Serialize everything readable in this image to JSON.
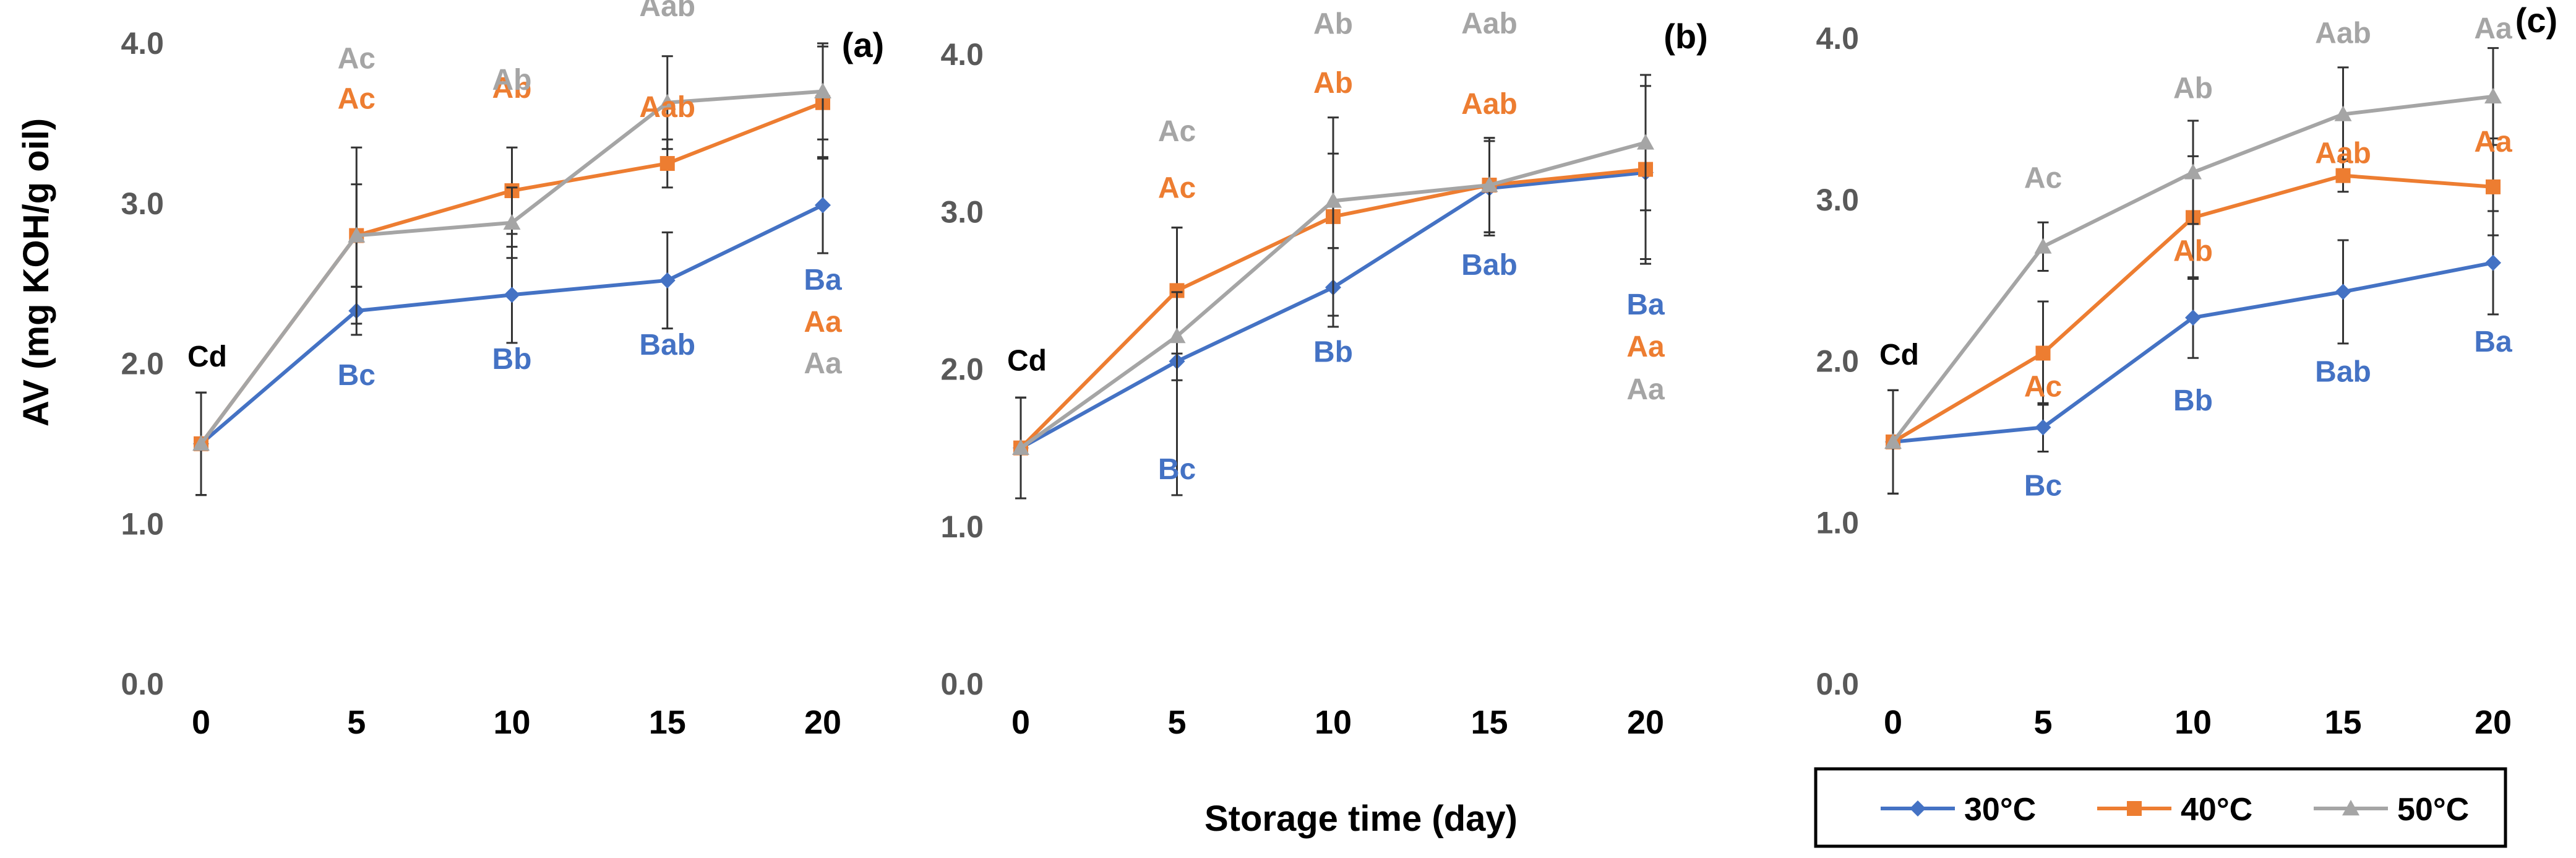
{
  "figure": {
    "ylabel": "AV (mg KOH/g oil)",
    "xlabel": "Storage time (day)"
  },
  "legend": {
    "items": [
      {
        "label": "30°C",
        "color": "#4472C4",
        "marker": "diamond"
      },
      {
        "label": "40°C",
        "color": "#ED7D31",
        "marker": "square"
      },
      {
        "label": "50°C",
        "color": "#A5A5A5",
        "marker": "triangle"
      }
    ]
  },
  "chart_data": [
    {
      "type": "line",
      "panel": "(a)",
      "x": [
        0,
        5,
        10,
        15,
        20
      ],
      "ylim": [
        0,
        4
      ],
      "yticks": [
        "0.0",
        "1.0",
        "2.0",
        "3.0",
        "4.0"
      ],
      "xticks": [
        "0",
        "5",
        "10",
        "15",
        "20"
      ],
      "series": [
        {
          "name": "30°C",
          "color": "#4472C4",
          "marker": "diamond",
          "values": [
            1.5,
            2.33,
            2.43,
            2.52,
            2.99
          ],
          "err": [
            0.32,
            0.15,
            0.3,
            0.3,
            0.3
          ],
          "labels": [
            "Cd",
            "Bc",
            "Bb",
            "Bab",
            "Ba"
          ]
        },
        {
          "name": "40°C",
          "color": "#ED7D31",
          "marker": "square",
          "values": [
            1.5,
            2.8,
            3.08,
            3.25,
            3.63
          ],
          "err": [
            0.32,
            0.55,
            0.27,
            0.15,
            0.35
          ],
          "labels": [
            "",
            "Ac",
            "Ab",
            "Aab",
            "Aa"
          ]
        },
        {
          "name": "50°C",
          "color": "#A5A5A5",
          "marker": "triangle",
          "values": [
            1.5,
            2.8,
            2.88,
            3.63,
            3.7
          ],
          "err": [
            0.32,
            0.32,
            0.22,
            0.29,
            0.3
          ],
          "labels": [
            "",
            "Ac",
            "Ab",
            "Aab",
            "Aa"
          ]
        }
      ]
    },
    {
      "type": "line",
      "panel": "(b)",
      "x": [
        0,
        5,
        10,
        15,
        20
      ],
      "ylim": [
        0,
        4
      ],
      "yticks": [
        "0.0",
        "1.0",
        "2.0",
        "3.0",
        "4.0"
      ],
      "xticks": [
        "0",
        "5",
        "10",
        "15",
        "20"
      ],
      "series": [
        {
          "name": "30°C",
          "color": "#4472C4",
          "marker": "diamond",
          "values": [
            1.5,
            2.05,
            2.52,
            3.15,
            3.25
          ],
          "err": [
            0.32,
            0.85,
            0.25,
            0.3,
            0.55
          ],
          "labels": [
            "Cd",
            "Bc",
            "Bb",
            "Bab",
            "Ba"
          ]
        },
        {
          "name": "40°C",
          "color": "#ED7D31",
          "marker": "square",
          "values": [
            1.5,
            2.5,
            2.97,
            3.17,
            3.27
          ],
          "err": [
            0.32,
            0.4,
            0.63,
            0.3,
            0.6
          ],
          "labels": [
            "",
            "Ac",
            "Ab",
            "Aab",
            "Aa"
          ]
        },
        {
          "name": "50°C",
          "color": "#A5A5A5",
          "marker": "triangle",
          "values": [
            1.5,
            2.21,
            3.07,
            3.17,
            3.44
          ],
          "err": [
            0.32,
            0.28,
            0.3,
            0.3,
            0.43
          ],
          "labels": [
            "",
            "Ac",
            "Ab",
            "Aab",
            "Aa"
          ]
        }
      ]
    },
    {
      "type": "line",
      "panel": "(c)",
      "x": [
        0,
        5,
        10,
        15,
        20
      ],
      "ylim": [
        0,
        4
      ],
      "yticks": [
        "0.0",
        "1.0",
        "2.0",
        "3.0",
        "4.0"
      ],
      "xticks": [
        "0",
        "5",
        "10",
        "15",
        "20"
      ],
      "series": [
        {
          "name": "30°C",
          "color": "#4472C4",
          "marker": "diamond",
          "values": [
            1.5,
            1.59,
            2.27,
            2.43,
            2.61
          ],
          "err": [
            0.32,
            0.15,
            0.25,
            0.32,
            0.32
          ],
          "labels": [
            "Cd",
            "Bc",
            "Bb",
            "Bab",
            "Ba"
          ]
        },
        {
          "name": "40°C",
          "color": "#ED7D31",
          "marker": "square",
          "values": [
            1.5,
            2.05,
            2.89,
            3.15,
            3.08
          ],
          "err": [
            0.32,
            0.32,
            0.38,
            0.1,
            0.3
          ],
          "labels": [
            "",
            "Ac",
            "Ab",
            "Aab",
            "Aa"
          ]
        },
        {
          "name": "50°C",
          "color": "#A5A5A5",
          "marker": "triangle",
          "values": [
            1.5,
            2.71,
            3.17,
            3.53,
            3.64
          ],
          "err": [
            0.32,
            0.15,
            0.32,
            0.29,
            0.3
          ],
          "labels": [
            "",
            "Ac",
            "Ab",
            "Aab",
            "Aa"
          ]
        }
      ]
    }
  ]
}
